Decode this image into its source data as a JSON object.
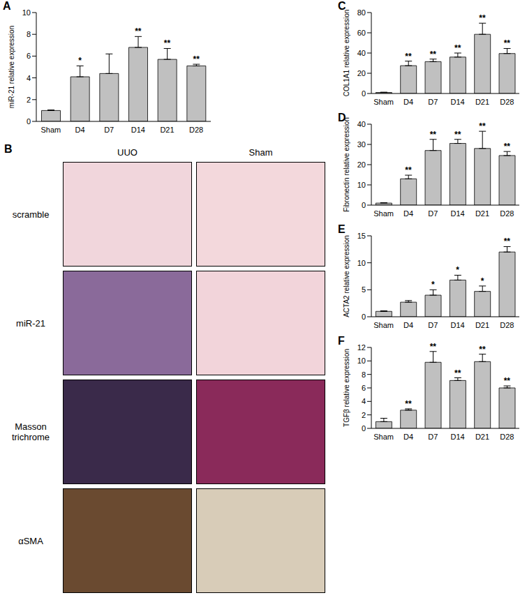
{
  "chart_data": [
    {
      "panel": "A",
      "type": "bar",
      "y_label": "miR-21 relative expression",
      "categories": [
        "Sham",
        "D4",
        "D7",
        "D14",
        "D21",
        "D28"
      ],
      "values": [
        1,
        4.1,
        4.4,
        6.8,
        5.7,
        5.1
      ],
      "errors": [
        0.05,
        1.0,
        1.8,
        1.0,
        1.0,
        0.15
      ],
      "significance": [
        null,
        "*",
        null,
        "**",
        "**",
        "**"
      ],
      "color": "#c0c0c0",
      "ylim": [
        0,
        10
      ],
      "yticks": [
        0,
        2,
        4,
        6,
        8,
        10
      ]
    },
    {
      "panel": "C",
      "type": "bar",
      "y_label": "COL1A1 relative expression",
      "categories": [
        "Sham",
        "D4",
        "D7",
        "D14",
        "D21",
        "D28"
      ],
      "values": [
        1,
        27.5,
        31.5,
        36,
        58.5,
        39.5
      ],
      "errors": [
        0.3,
        4.5,
        2.5,
        4,
        11,
        5
      ],
      "significance": [
        null,
        "**",
        "**",
        "**",
        "**",
        "**"
      ],
      "color": "#c0c0c0",
      "ylim": [
        0,
        80
      ],
      "yticks": [
        0,
        20,
        40,
        60,
        80
      ]
    },
    {
      "panel": "D",
      "type": "bar",
      "y_label": "Fibronectin relative expression",
      "categories": [
        "Sham",
        "D4",
        "D7",
        "D14",
        "D21",
        "D28"
      ],
      "values": [
        1,
        13,
        27,
        30.5,
        28,
        24.5
      ],
      "errors": [
        0.2,
        1.8,
        5.5,
        2,
        8.5,
        2
      ],
      "significance": [
        null,
        "**",
        "**",
        "**",
        "**",
        "**"
      ],
      "color": "#c0c0c0",
      "ylim": [
        0,
        40
      ],
      "yticks": [
        0,
        10,
        20,
        30,
        40
      ]
    },
    {
      "panel": "E",
      "type": "bar",
      "y_label": "ACTA2 relative expression",
      "categories": [
        "Sham",
        "D4",
        "D7",
        "D14",
        "D21",
        "D28"
      ],
      "values": [
        1,
        2.7,
        4,
        6.8,
        4.7,
        12
      ],
      "errors": [
        0.1,
        0.3,
        1,
        0.9,
        1,
        1
      ],
      "significance": [
        null,
        null,
        "*",
        "*",
        "*",
        "**"
      ],
      "color": "#c0c0c0",
      "ylim": [
        0,
        15
      ],
      "yticks": [
        0,
        5,
        10,
        15
      ]
    },
    {
      "panel": "F",
      "type": "bar",
      "y_label": "TGFβ relative expression",
      "categories": [
        "Sham",
        "D4",
        "D7",
        "D14",
        "D21",
        "D28"
      ],
      "values": [
        1,
        2.7,
        9.8,
        7.1,
        9.9,
        6
      ],
      "errors": [
        0.5,
        0.2,
        1.6,
        0.4,
        1.1,
        0.3
      ],
      "significance": [
        null,
        "**",
        "**",
        "**",
        "**",
        "**"
      ],
      "color": "#c0c0c0",
      "ylim": [
        0,
        12
      ],
      "yticks": [
        0,
        2,
        4,
        6,
        8,
        10,
        12
      ]
    }
  ],
  "image_panel": {
    "panel": "B",
    "columns": [
      "UUO",
      "Sham"
    ],
    "rows": [
      "scramble",
      "miR-21",
      "Masson trichrome",
      "αSMA"
    ]
  }
}
